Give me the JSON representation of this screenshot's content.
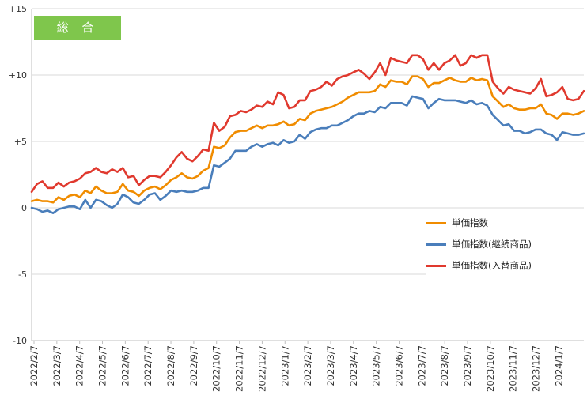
{
  "badge": {
    "label": "総 合"
  },
  "chart_data": {
    "type": "line",
    "ylim": [
      -10,
      15
    ],
    "yticks": [
      15,
      10,
      5,
      0,
      -5,
      -10
    ],
    "ytick_labels": [
      "+15",
      "+10",
      "+5",
      "0",
      "-5",
      "-10"
    ],
    "xtick_labels": [
      "2022/2/7",
      "2022/3/7",
      "2022/4/7",
      "2022/5/7",
      "2022/6/7",
      "2022/7/7",
      "2022/8/7",
      "2022/9/7",
      "2022/10/7",
      "2022/11/7",
      "2022/12/7",
      "2023/1/7",
      "2023/2/7",
      "2023/3/7",
      "2023/4/7",
      "2023/5/7",
      "2023/6/7",
      "2023/7/7",
      "2023/8/7",
      "2023/9/7",
      "2023/10/7",
      "2023/11/7",
      "2023/12/7",
      "2024/1/7"
    ],
    "grid": {
      "horizontal": true,
      "vertical": false
    },
    "legend_position": "right-center",
    "series": [
      {
        "name": "単価指数",
        "color": "#f08c00",
        "values": [
          0.5,
          0.6,
          0.5,
          0.5,
          0.4,
          0.8,
          0.6,
          0.9,
          1.0,
          0.8,
          1.3,
          1.1,
          1.6,
          1.3,
          1.1,
          1.1,
          1.2,
          1.8,
          1.3,
          1.2,
          0.9,
          1.3,
          1.5,
          1.6,
          1.4,
          1.7,
          2.1,
          2.3,
          2.6,
          2.3,
          2.2,
          2.4,
          2.8,
          3.0,
          4.6,
          4.5,
          4.7,
          5.3,
          5.7,
          5.8,
          5.8,
          6.0,
          6.2,
          6.0,
          6.2,
          6.2,
          6.3,
          6.5,
          6.2,
          6.3,
          6.7,
          6.6,
          7.1,
          7.3,
          7.4,
          7.5,
          7.6,
          7.8,
          8.0,
          8.3,
          8.5,
          8.7,
          8.7,
          8.7,
          8.8,
          9.3,
          9.1,
          9.6,
          9.5,
          9.5,
          9.3,
          9.9,
          9.9,
          9.7,
          9.1,
          9.4,
          9.4,
          9.6,
          9.8,
          9.6,
          9.5,
          9.5,
          9.8,
          9.6,
          9.7,
          9.6,
          8.4,
          8.0,
          7.6,
          7.8,
          7.5,
          7.4,
          7.4,
          7.5,
          7.5,
          7.8,
          7.1,
          7.0,
          6.7,
          7.1,
          7.1,
          7.0,
          7.1,
          7.3
        ]
      },
      {
        "name": "単価指数(継続商品)",
        "color": "#4a7ebb",
        "values": [
          0.0,
          -0.1,
          -0.3,
          -0.2,
          -0.4,
          -0.1,
          0.0,
          0.1,
          0.1,
          -0.1,
          0.6,
          0.0,
          0.6,
          0.5,
          0.2,
          0.0,
          0.3,
          1.0,
          0.8,
          0.4,
          0.3,
          0.6,
          1.0,
          1.1,
          0.6,
          0.9,
          1.3,
          1.2,
          1.3,
          1.2,
          1.2,
          1.3,
          1.5,
          1.5,
          3.2,
          3.1,
          3.4,
          3.7,
          4.3,
          4.3,
          4.3,
          4.6,
          4.8,
          4.6,
          4.8,
          4.9,
          4.7,
          5.1,
          4.9,
          5.0,
          5.5,
          5.2,
          5.7,
          5.9,
          6.0,
          6.0,
          6.2,
          6.2,
          6.4,
          6.6,
          6.9,
          7.1,
          7.1,
          7.3,
          7.2,
          7.6,
          7.5,
          7.9,
          7.9,
          7.9,
          7.7,
          8.4,
          8.3,
          8.2,
          7.5,
          7.9,
          8.2,
          8.1,
          8.1,
          8.1,
          8.0,
          7.9,
          8.1,
          7.8,
          7.9,
          7.7,
          7.0,
          6.6,
          6.2,
          6.3,
          5.8,
          5.8,
          5.6,
          5.7,
          5.9,
          5.9,
          5.6,
          5.5,
          5.1,
          5.7,
          5.6,
          5.5,
          5.5,
          5.6
        ]
      },
      {
        "name": "単価指数(入替商品)",
        "color": "#e0392e",
        "values": [
          1.2,
          1.8,
          2.0,
          1.5,
          1.5,
          1.9,
          1.6,
          1.9,
          2.0,
          2.2,
          2.6,
          2.7,
          3.0,
          2.7,
          2.6,
          2.9,
          2.7,
          3.0,
          2.3,
          2.4,
          1.7,
          2.1,
          2.4,
          2.4,
          2.3,
          2.7,
          3.2,
          3.8,
          4.2,
          3.7,
          3.5,
          3.9,
          4.4,
          4.3,
          6.4,
          5.8,
          6.1,
          6.9,
          7.0,
          7.3,
          7.2,
          7.4,
          7.7,
          7.6,
          8.0,
          7.8,
          8.7,
          8.5,
          7.5,
          7.6,
          8.1,
          8.1,
          8.8,
          8.9,
          9.1,
          9.5,
          9.2,
          9.7,
          9.9,
          10.0,
          10.2,
          10.4,
          10.1,
          9.7,
          10.2,
          10.9,
          10.0,
          11.3,
          11.1,
          11.0,
          10.9,
          11.5,
          11.5,
          11.2,
          10.4,
          10.9,
          10.4,
          10.9,
          11.1,
          11.5,
          10.7,
          10.9,
          11.5,
          11.3,
          11.5,
          11.5,
          9.5,
          9.0,
          8.6,
          9.1,
          8.9,
          8.8,
          8.7,
          8.6,
          9.0,
          9.7,
          8.4,
          8.5,
          8.7,
          9.1,
          8.2,
          8.1,
          8.2,
          8.8
        ]
      }
    ]
  }
}
